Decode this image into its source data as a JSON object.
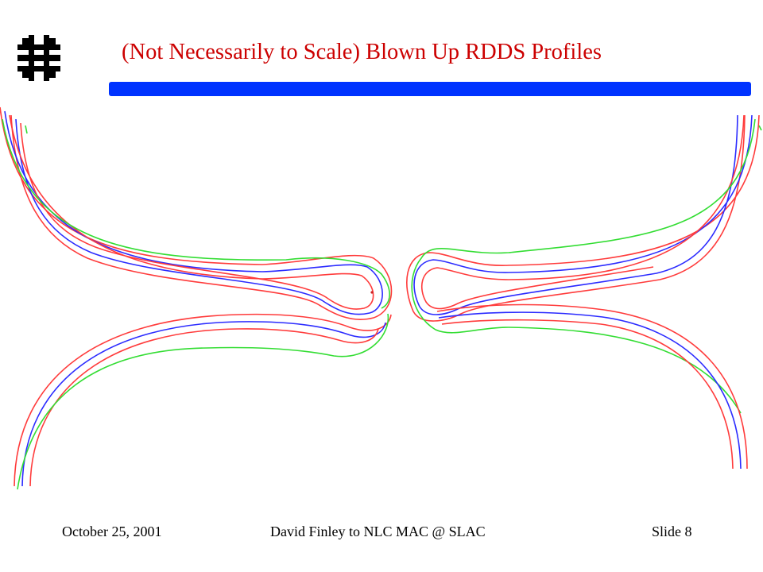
{
  "slide": {
    "title": "(Not Necessarily to Scale) Blown Up RDDS Profiles",
    "logo_icon": "fermilab-logo-icon"
  },
  "footer": {
    "date": "October 25, 2001",
    "center": "David Finley to NLC MAC @ SLAC",
    "slide_number": "Slide 8"
  },
  "colors": {
    "title": "#cc0000",
    "title_bar": "#0033ff",
    "profile_red": "#ff3b3b",
    "profile_blue": "#2b2bff",
    "profile_green": "#33dd33"
  }
}
